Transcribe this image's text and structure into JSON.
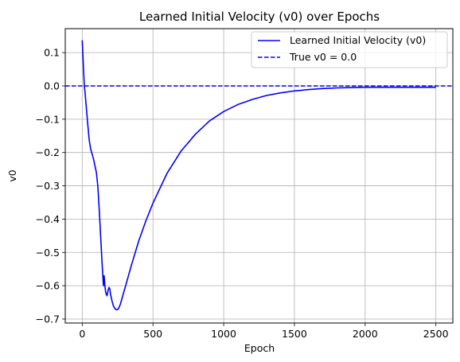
{
  "chart_data": {
    "type": "line",
    "title": "Learned Initial Velocity (v0) over Epochs",
    "xlabel": "Epoch",
    "ylabel": "v0",
    "xlim": [
      -120,
      2620
    ],
    "ylim": [
      -0.712,
      0.172
    ],
    "xticks": [
      0,
      500,
      1000,
      1500,
      2000,
      2500
    ],
    "xtick_labels": [
      "0",
      "500",
      "1000",
      "1500",
      "2000",
      "2500"
    ],
    "yticks": [
      0.1,
      0.0,
      -0.1,
      -0.2,
      -0.3,
      -0.4,
      -0.5,
      -0.6,
      -0.7
    ],
    "ytick_labels": [
      "0.1",
      "0.0",
      "−0.1",
      "−0.2",
      "−0.3",
      "−0.4",
      "−0.5",
      "−0.6",
      "−0.7"
    ],
    "grid": true,
    "legend_position": "top-right",
    "colors": {
      "series": "#0000ff",
      "grid": "#b0b0b0",
      "axes": "#000000"
    },
    "series": [
      {
        "name": "Learned Initial Velocity (v0)",
        "style": "solid",
        "x": [
          0,
          5,
          10,
          15,
          20,
          25,
          30,
          40,
          50,
          60,
          70,
          80,
          90,
          100,
          110,
          120,
          130,
          140,
          150,
          155,
          160,
          163,
          166,
          170,
          175,
          180,
          185,
          190,
          195,
          200,
          205,
          210,
          220,
          230,
          240,
          250,
          260,
          270,
          280,
          290,
          300,
          350,
          400,
          450,
          500,
          600,
          700,
          800,
          900,
          1000,
          1100,
          1200,
          1300,
          1400,
          1500,
          1600,
          1700,
          1800,
          1900,
          2000,
          2100,
          2200,
          2300,
          2400,
          2500
        ],
        "y": [
          0.137,
          0.09,
          0.04,
          0.0,
          -0.02,
          -0.045,
          -0.07,
          -0.12,
          -0.165,
          -0.19,
          -0.205,
          -0.22,
          -0.24,
          -0.26,
          -0.3,
          -0.37,
          -0.45,
          -0.53,
          -0.6,
          -0.57,
          -0.6,
          -0.61,
          -0.62,
          -0.625,
          -0.63,
          -0.62,
          -0.61,
          -0.605,
          -0.61,
          -0.625,
          -0.635,
          -0.645,
          -0.66,
          -0.668,
          -0.672,
          -0.672,
          -0.666,
          -0.655,
          -0.64,
          -0.625,
          -0.61,
          -0.535,
          -0.465,
          -0.405,
          -0.352,
          -0.262,
          -0.195,
          -0.145,
          -0.105,
          -0.077,
          -0.056,
          -0.041,
          -0.029,
          -0.021,
          -0.015,
          -0.011,
          -0.008,
          -0.006,
          -0.005,
          -0.004,
          -0.004,
          -0.004,
          -0.004,
          -0.004,
          -0.004
        ]
      },
      {
        "name": "True v0 = 0.0",
        "style": "dashed",
        "x": [
          -120,
          2620
        ],
        "y": [
          0.0,
          0.0
        ]
      }
    ]
  }
}
